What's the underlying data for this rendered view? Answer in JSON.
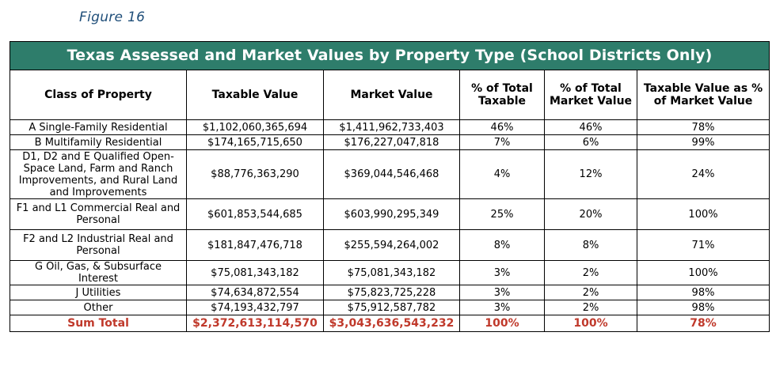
{
  "figure_label": "Figure 16",
  "table": {
    "title": "Texas Assessed and Market Values by Property Type (School Districts Only)",
    "headers": [
      "Class of Property",
      "Taxable Value",
      "Market Value",
      "% of Total Taxable",
      "% of Total Market Value",
      "Taxable Value as % of Market Value"
    ],
    "rows": [
      [
        "A Single-Family Residential",
        "$1,102,060,365,694",
        "$1,411,962,733,403",
        "46%",
        "46%",
        "78%"
      ],
      [
        "B Multifamily Residential",
        "$174,165,715,650",
        "$176,227,047,818",
        "7%",
        "6%",
        "99%"
      ],
      [
        "D1, D2 and E Qualified Open-Space Land, Farm and Ranch Improvements, and Rural Land and Improvements",
        "$88,776,363,290",
        "$369,044,546,468",
        "4%",
        "12%",
        "24%"
      ],
      [
        "F1 and L1 Commercial Real and Personal",
        "$601,853,544,685",
        "$603,990,295,349",
        "25%",
        "20%",
        "100%"
      ],
      [
        "F2 and L2 Industrial Real and Personal",
        "$181,847,476,718",
        "$255,594,264,002",
        "8%",
        "8%",
        "71%"
      ],
      [
        "G Oil, Gas, & Subsurface Interest",
        "$75,081,343,182",
        "$75,081,343,182",
        "3%",
        "2%",
        "100%"
      ],
      [
        "J Utilities",
        "$74,634,872,554",
        "$75,823,725,228",
        "3%",
        "2%",
        "98%"
      ],
      [
        "Other",
        "$74,193,432,797",
        "$75,912,587,782",
        "3%",
        "2%",
        "98%"
      ]
    ],
    "total": [
      "Sum Total",
      "$2,372,613,114,570",
      "$3,043,636,543,232",
      "100%",
      "100%",
      "78%"
    ]
  },
  "colors": {
    "title_bg": "#2e7d6b",
    "figure_label": "#1f4e79",
    "total_text": "#c0392b"
  }
}
